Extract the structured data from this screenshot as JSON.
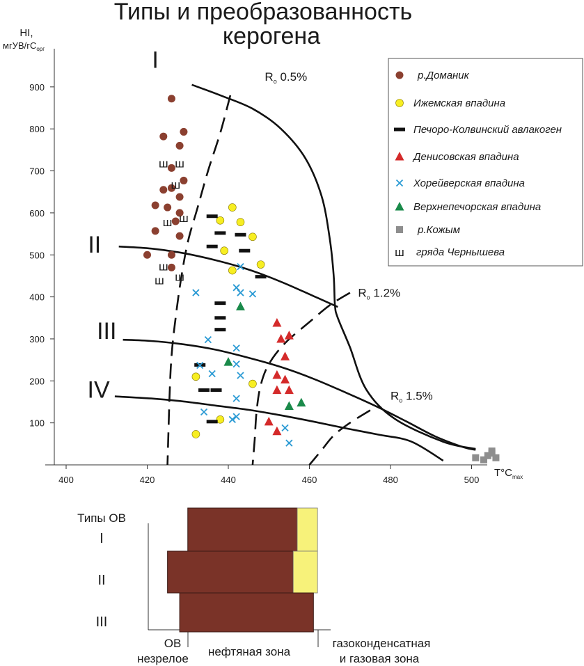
{
  "colors": {
    "domanik": "#8b4030",
    "izhma": "#f7ee22",
    "izhma_stroke": "#8a7a00",
    "pechora": "#111111",
    "denisov": "#d42a2a",
    "khorey": "#2a9ad4",
    "verkhnepech": "#1a8a4a",
    "kozhym": "#8e8e8e",
    "chern": "#111111",
    "zone_brown": "#7a3328",
    "zone_yellow": "#f7f27a"
  },
  "chart_data": [
    {
      "type": "scatter",
      "title": "Типы и преобразованность керогена",
      "ylabel_line1": "HI,",
      "ylabel_line2": "мгУВ/гС",
      "ylabel_sub": "орг",
      "xlabel": "T°C",
      "xlabel_sub": "max",
      "xlim": [
        400,
        510
      ],
      "ylim": [
        0,
        950
      ],
      "x_ticks": [
        400,
        420,
        440,
        460,
        480,
        500
      ],
      "y_ticks": [
        100,
        200,
        300,
        400,
        500,
        600,
        700,
        800,
        900
      ],
      "type_labels": [
        {
          "label": "I",
          "x": 422,
          "y": 945
        },
        {
          "label": "II",
          "x": 407,
          "y": 505
        },
        {
          "label": "III",
          "x": 410,
          "y": 300
        },
        {
          "label": "IV",
          "x": 408,
          "y": 160
        }
      ],
      "ro_labels": [
        {
          "label": "R",
          "sub": "o",
          "value": "0.5%",
          "x": 449,
          "y": 915
        },
        {
          "label": "R",
          "sub": "o",
          "value": "1.2%",
          "x": 472,
          "y": 400
        },
        {
          "label": "R",
          "sub": "o",
          "value": "1.5%",
          "x": 480,
          "y": 155
        }
      ],
      "type_curves": [
        {
          "name": "I",
          "points": [
            [
              431,
              905
            ],
            [
              438,
              880
            ],
            [
              446,
              848
            ],
            [
              453,
              800
            ],
            [
              459,
              730
            ],
            [
              463,
              640
            ],
            [
              465,
              540
            ],
            [
              466,
              450
            ],
            [
              466.3,
              380
            ],
            [
              467,
              350
            ],
            [
              470,
              280
            ],
            [
              474,
              180
            ],
            [
              481,
              110
            ],
            [
              493,
              55
            ],
            [
              501,
              38
            ]
          ]
        },
        {
          "name": "II",
          "points": [
            [
              413,
              520
            ],
            [
              421,
              515
            ],
            [
              429,
              504
            ],
            [
              437,
              487
            ],
            [
              445,
              465
            ],
            [
              453,
              436
            ],
            [
              461,
              402
            ],
            [
              467,
              376
            ]
          ]
        },
        {
          "name": "III",
          "points": [
            [
              414,
              298
            ],
            [
              421,
              295
            ],
            [
              429,
              287
            ],
            [
              437,
              274
            ],
            [
              445,
              255
            ],
            [
              453,
              233
            ],
            [
              461,
              205
            ],
            [
              469,
              172
            ],
            [
              477,
              137
            ],
            [
              484,
              103
            ],
            [
              491,
              68
            ],
            [
              498,
              42
            ],
            [
              501,
              36
            ]
          ]
        },
        {
          "name": "IV",
          "points": [
            [
              412,
              163
            ],
            [
              421,
              158
            ],
            [
              429,
              151
            ],
            [
              437,
              141
            ],
            [
              445,
              131
            ],
            [
              453,
              118
            ],
            [
              461,
              103
            ],
            [
              469,
              87
            ],
            [
              477,
              72
            ],
            [
              485,
              56
            ],
            [
              493,
              10
            ]
          ]
        }
      ],
      "ro_curves": [
        {
          "name": "Ro 0.5%",
          "points": [
            [
              440.5,
              880
            ],
            [
              438,
              790
            ],
            [
              435,
              700
            ],
            [
              432.5,
              615
            ],
            [
              430,
              530
            ],
            [
              428.3,
              440
            ],
            [
              427,
              350
            ],
            [
              426,
              260
            ],
            [
              425.5,
              160
            ],
            [
              425,
              0
            ]
          ]
        },
        {
          "name": "Ro 1.2%",
          "points": [
            [
              470,
              410
            ],
            [
              465,
              380
            ],
            [
              460,
              340
            ],
            [
              454,
              290
            ],
            [
              450,
              240
            ],
            [
              448,
              190
            ],
            [
              447,
              130
            ],
            [
              446.5,
              60
            ],
            [
              446,
              0
            ]
          ]
        },
        {
          "name": "Ro 1.5%",
          "points": [
            [
              475,
              130
            ],
            [
              470,
              100
            ],
            [
              466,
              70
            ],
            [
              463,
              35
            ],
            [
              460,
              0
            ]
          ]
        }
      ],
      "series": [
        {
          "name": "р.Доманик",
          "marker": "circle",
          "color": "#8b4030",
          "points": [
            [
              426,
              872
            ],
            [
              429,
              793
            ],
            [
              424,
              782
            ],
            [
              428,
              760
            ],
            [
              426,
              707
            ],
            [
              429,
              677
            ],
            [
              424,
              655
            ],
            [
              426,
              659
            ],
            [
              428,
              638
            ],
            [
              422,
              618
            ],
            [
              425,
              613
            ],
            [
              428,
              600
            ],
            [
              427,
              580
            ],
            [
              422,
              557
            ],
            [
              428,
              545
            ],
            [
              420,
              500
            ],
            [
              426,
              500
            ],
            [
              426,
              470
            ]
          ]
        },
        {
          "name": "Ижемская впадина",
          "marker": "circle",
          "color": "#f7ee22",
          "points": [
            [
              441,
              613
            ],
            [
              438,
              582
            ],
            [
              443,
              578
            ],
            [
              446,
              543
            ],
            [
              439,
              510
            ],
            [
              448,
              477
            ],
            [
              441,
              463
            ],
            [
              432,
              210
            ],
            [
              446,
              193
            ],
            [
              438,
              108
            ],
            [
              432,
              73
            ]
          ]
        },
        {
          "name": "Печоро-Колвинский авлакоген",
          "marker": "dash",
          "color": "#111111",
          "points": [
            [
              436,
              592
            ],
            [
              438,
              552
            ],
            [
              443,
              548
            ],
            [
              436,
              520
            ],
            [
              444,
              510
            ],
            [
              448,
              448
            ],
            [
              438,
              385
            ],
            [
              438,
              350
            ],
            [
              438,
              322
            ],
            [
              433,
              238
            ],
            [
              434,
              178
            ],
            [
              437,
              178
            ],
            [
              436,
              103
            ]
          ]
        },
        {
          "name": "Денисовская впадина",
          "marker": "triangle",
          "color": "#d42a2a",
          "points": [
            [
              452,
              338
            ],
            [
              453,
              300
            ],
            [
              455,
              308
            ],
            [
              454,
              258
            ],
            [
              452,
              214
            ],
            [
              454,
              203
            ],
            [
              452,
              178
            ],
            [
              455,
              178
            ],
            [
              450,
              103
            ],
            [
              452,
              80
            ]
          ]
        },
        {
          "name": "Хорейверская впадина",
          "marker": "x",
          "color": "#2a9ad4",
          "points": [
            [
              443,
              472
            ],
            [
              432,
              410
            ],
            [
              442,
              422
            ],
            [
              443,
              410
            ],
            [
              446,
              407
            ],
            [
              435,
              298
            ],
            [
              442,
              278
            ],
            [
              433,
              237
            ],
            [
              436,
              217
            ],
            [
              442,
              240
            ],
            [
              443,
              213
            ],
            [
              442,
              158
            ],
            [
              434,
              126
            ],
            [
              441,
              108
            ],
            [
              442,
              115
            ],
            [
              454,
              88
            ],
            [
              455,
              52
            ]
          ]
        },
        {
          "name": "Верхнепечорская впадина",
          "marker": "triangle",
          "color": "#1a8a4a",
          "points": [
            [
              443,
              377
            ],
            [
              440,
              245
            ],
            [
              455,
              140
            ],
            [
              458,
              148
            ]
          ]
        },
        {
          "name": "р.Кожым",
          "marker": "square",
          "color": "#8e8e8e",
          "points": [
            [
              501,
              17
            ],
            [
              503,
              12
            ],
            [
              504,
              22
            ],
            [
              505,
              33
            ],
            [
              506,
              17
            ],
            [
              505,
              28
            ]
          ]
        },
        {
          "name": "гряда Чернышева",
          "marker": "glyph",
          "glyph": "ш",
          "color": "#111111",
          "points": [
            [
              424,
              718
            ],
            [
              428,
              718
            ],
            [
              427,
              668
            ],
            [
              425,
              578
            ],
            [
              429,
              588
            ],
            [
              424,
              473
            ],
            [
              428,
              448
            ],
            [
              423,
              440
            ]
          ]
        }
      ],
      "legend_position": "top-right",
      "legend_title": ""
    },
    {
      "type": "bar",
      "title": "",
      "y_label_header": "Типы ОВ",
      "categories": [
        "I",
        "II",
        "III"
      ],
      "zone_labels": {
        "immature_1": "ОВ",
        "immature_2": "незрелое",
        "oil": "нефтяная зона",
        "gas_1": "газоконденсатная",
        "gas_2": "и газовая зона"
      },
      "series": [
        {
          "type": "I",
          "oil_start": 430,
          "oil_end": 457,
          "gas_end": 462
        },
        {
          "type": "II",
          "oil_start": 425,
          "oil_end": 456,
          "gas_end": 462
        },
        {
          "type": "III",
          "oil_start": 428,
          "oil_end": 461,
          "gas_end": 461
        }
      ]
    }
  ]
}
